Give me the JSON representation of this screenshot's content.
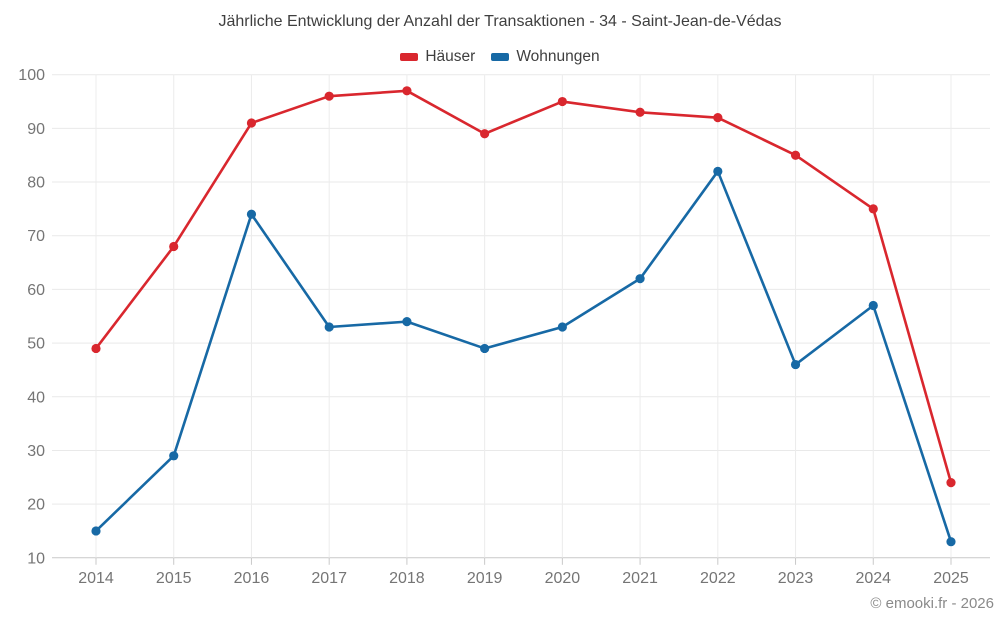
{
  "page": {
    "footer": "© emooki.fr - 2026"
  },
  "chart_data": {
    "type": "line",
    "title": "Jährliche Entwicklung der Anzahl der Transaktionen - 34 - Saint-Jean-de-Védas",
    "categories": [
      "2014",
      "2015",
      "2016",
      "2017",
      "2018",
      "2019",
      "2020",
      "2021",
      "2022",
      "2023",
      "2024",
      "2025"
    ],
    "series": [
      {
        "name": "Häuser",
        "color": "#d9272e",
        "values": [
          49,
          68,
          91,
          96,
          97,
          89,
          95,
          93,
          92,
          85,
          75,
          24
        ]
      },
      {
        "name": "Wohnungen",
        "color": "#1769a5",
        "values": [
          15,
          29,
          74,
          53,
          54,
          49,
          53,
          62,
          82,
          46,
          57,
          13
        ]
      }
    ],
    "xlabel": "",
    "ylabel": "",
    "ylim": [
      10,
      100
    ],
    "ytick_step": 10,
    "grid": true,
    "legend_position": "top",
    "marker": "circle"
  }
}
